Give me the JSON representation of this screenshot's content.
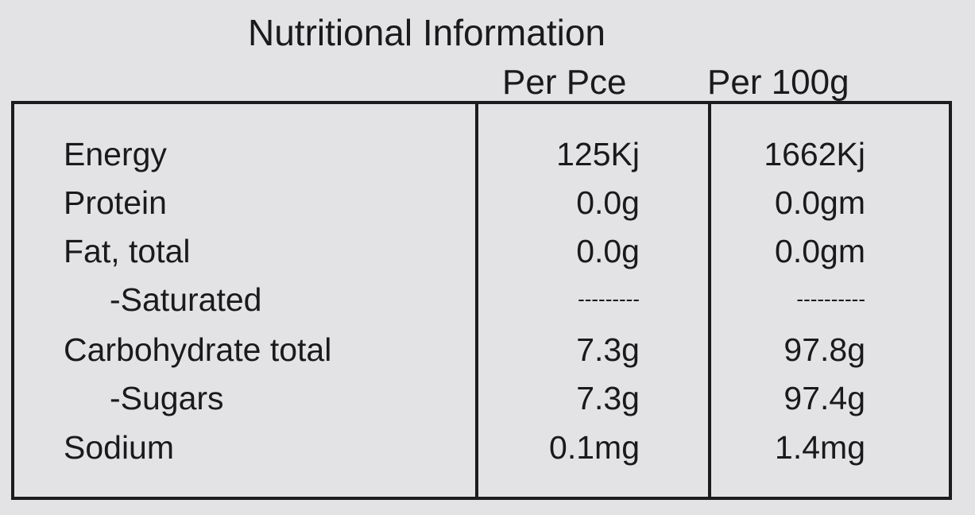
{
  "title": "Nutritional Information",
  "table": {
    "headers": [
      "Per Pce",
      "Per 100g"
    ],
    "rows": [
      [
        "Energy",
        "125Kj",
        "1662Kj"
      ],
      [
        "Protein",
        "0.0g",
        "0.0gm"
      ],
      [
        "Fat, total",
        "0.0g",
        "0.0gm"
      ],
      [
        "-Saturated",
        "---------",
        "----------"
      ],
      [
        "Carbohydrate total",
        "7.3g",
        "97.8g"
      ],
      [
        "-Sugars",
        "7.3g",
        "97.4g"
      ],
      [
        "Sodium",
        "0.1mg",
        "1.4mg"
      ]
    ]
  }
}
